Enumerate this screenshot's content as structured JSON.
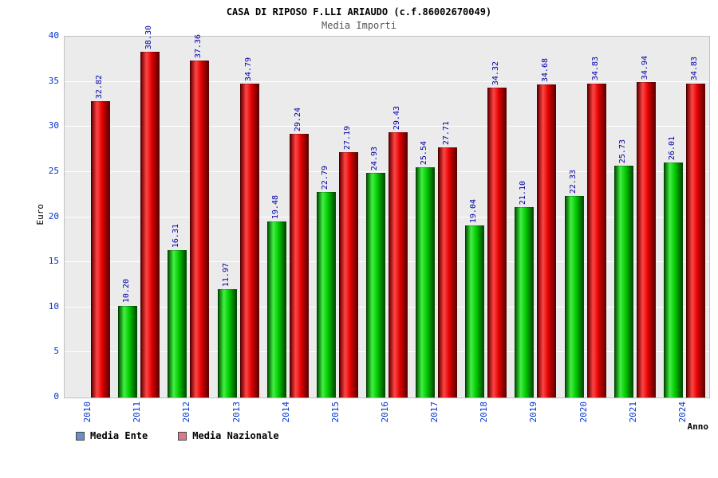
{
  "chart_data": {
    "type": "bar",
    "title": "CASA DI RIPOSO F.LLI ARIAUDO (c.f.86002670049)",
    "subtitle": "Media Importi",
    "categories": [
      "2010",
      "2011",
      "2012",
      "2013",
      "2014",
      "2015",
      "2016",
      "2017",
      "2018",
      "2019",
      "2020",
      "2021",
      "2024"
    ],
    "series": [
      {
        "name": "Media Ente",
        "bar_color": "#00cc00",
        "legend_color": "#6b8fc9",
        "values": [
          null,
          10.2,
          16.31,
          11.97,
          19.48,
          22.79,
          24.93,
          25.54,
          19.04,
          21.1,
          22.33,
          25.73,
          26.01
        ]
      },
      {
        "name": "Media Nazionale",
        "bar_color": "#ee1111",
        "legend_color": "#d97a8a",
        "values": [
          32.82,
          38.3,
          37.36,
          34.79,
          29.24,
          27.19,
          29.43,
          27.71,
          34.32,
          34.68,
          34.83,
          34.94,
          34.83
        ]
      }
    ],
    "xlabel": "Anno",
    "ylabel": "Euro",
    "ylim": [
      0,
      40
    ],
    "yticks": [
      0,
      5,
      10,
      15,
      20,
      25,
      30,
      35,
      40
    ],
    "grid": "horizontal-white-on-gray",
    "legend_position": "bottom-left",
    "plot_background": "#ebebeb",
    "tick_label_color": "#0033cc",
    "value_label_color": "#0000a8"
  }
}
